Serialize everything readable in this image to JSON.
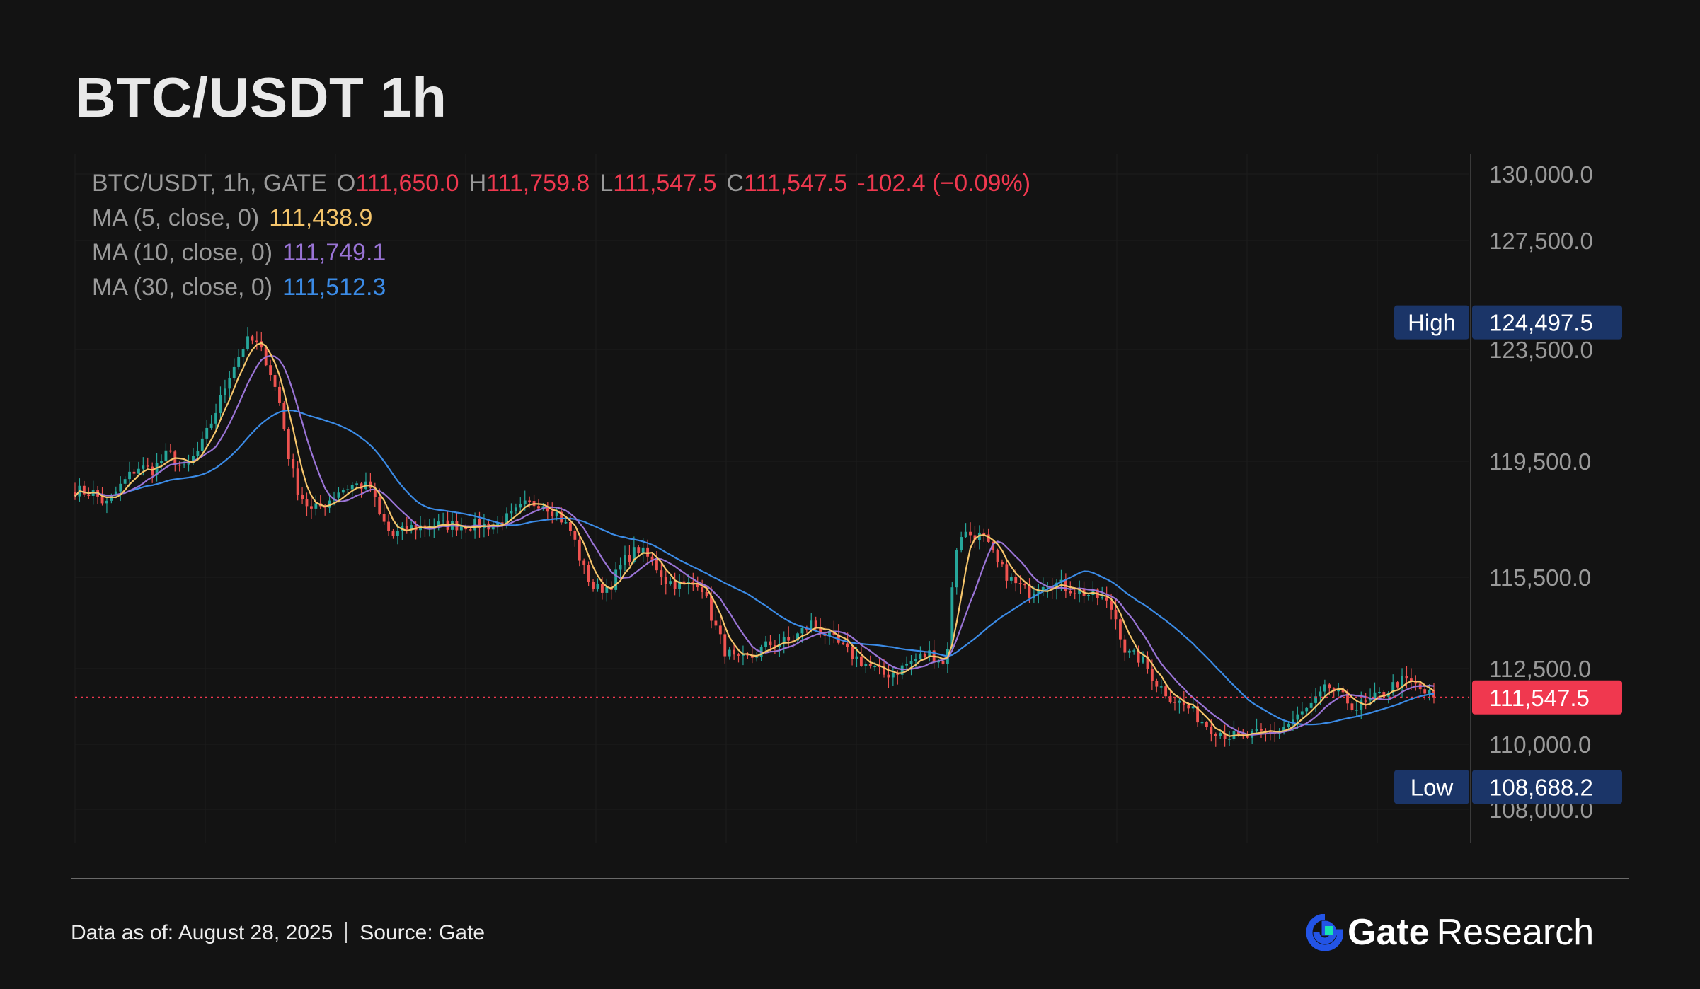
{
  "page": {
    "title": "BTC/USDT 1h"
  },
  "legend": {
    "symbol": "BTC/USDT, 1h, GATE",
    "o_label": "O",
    "o_value": "111,650.0",
    "h_label": "H",
    "h_value": "111,759.8",
    "l_label": "L",
    "l_value": "111,547.5",
    "c_label": "C",
    "c_value": "111,547.5",
    "change": "-102.4 (−0.09%)",
    "ma5_label": "MA (5, close, 0)",
    "ma5_value": "111,438.9",
    "ma10_label": "MA (10, close, 0)",
    "ma10_value": "111,749.1",
    "ma30_label": "MA (30, close, 0)",
    "ma30_value": "111,512.3"
  },
  "footer": {
    "data_as_of": "Data as of: August 28, 2025",
    "source": "Source: Gate"
  },
  "brand": {
    "name": "Gate",
    "suffix": "Research",
    "icon": "gate-logo-icon"
  },
  "colors": {
    "up": "#26a69a",
    "down": "#ef5350",
    "ma5": "#f5c56b",
    "ma10": "#9a74d6",
    "ma30": "#3b8be6",
    "price_tag": "#f0384f",
    "badge": "#1b3568"
  },
  "chart_data": {
    "type": "candlestick",
    "title": "BTC/USDT 1h",
    "interval": "1h",
    "exchange": "GATE",
    "ylim": [
      108000,
      130000
    ],
    "y_ticks": [
      "130,000.0",
      "127,500.0",
      "123,500.0",
      "119,500.0",
      "115,500.0",
      "112,500.0",
      "110,000.0",
      "108,000.0"
    ],
    "y_tick_values": [
      130000,
      127500,
      123500,
      119500,
      115500,
      112500,
      110000,
      108000
    ],
    "last_price": 111547.5,
    "last_price_label": "111,547.5",
    "high": {
      "label": "High",
      "value": 124497.5,
      "value_label": "124,497.5"
    },
    "low": {
      "label": "Low",
      "value": 108688.2,
      "value_label": "108,688.2"
    },
    "bars": 300,
    "approx_close_path": [
      [
        0,
        118500
      ],
      [
        6,
        118400
      ],
      [
        10,
        118000
      ],
      [
        15,
        118700
      ],
      [
        20,
        119300
      ],
      [
        25,
        119200
      ],
      [
        30,
        119800
      ],
      [
        35,
        119200
      ],
      [
        40,
        119900
      ],
      [
        45,
        121200
      ],
      [
        50,
        122700
      ],
      [
        55,
        123800
      ],
      [
        58,
        123800
      ],
      [
        62,
        123000
      ],
      [
        66,
        121500
      ],
      [
        69,
        119500
      ],
      [
        72,
        118400
      ],
      [
        76,
        117800
      ],
      [
        80,
        118000
      ],
      [
        85,
        118500
      ],
      [
        90,
        118700
      ],
      [
        95,
        118600
      ],
      [
        98,
        117600
      ],
      [
        102,
        116900
      ],
      [
        107,
        117200
      ],
      [
        115,
        117300
      ],
      [
        125,
        117300
      ],
      [
        135,
        117300
      ],
      [
        140,
        117600
      ],
      [
        145,
        118000
      ],
      [
        150,
        118100
      ],
      [
        155,
        117700
      ],
      [
        160,
        117000
      ],
      [
        163,
        115900
      ],
      [
        167,
        115100
      ],
      [
        172,
        115200
      ],
      [
        176,
        116000
      ],
      [
        181,
        116500
      ],
      [
        186,
        116000
      ],
      [
        190,
        115400
      ],
      [
        196,
        115200
      ],
      [
        201,
        115400
      ],
      [
        205,
        114100
      ],
      [
        209,
        113100
      ],
      [
        213,
        112700
      ],
      [
        218,
        112900
      ],
      [
        223,
        113300
      ],
      [
        230,
        113400
      ],
      [
        237,
        114000
      ],
      [
        243,
        113500
      ],
      [
        249,
        113000
      ],
      [
        255,
        112600
      ],
      [
        260,
        112300
      ],
      [
        264,
        112400
      ],
      [
        270,
        112800
      ],
      [
        275,
        113000
      ],
      [
        278,
        112800
      ],
      [
        280,
        112500
      ],
      [
        282,
        115000
      ],
      [
        284,
        117000
      ],
      [
        287,
        117000
      ],
      [
        292,
        116900
      ],
      [
        297,
        115900
      ],
      [
        302,
        115300
      ],
      [
        307,
        115000
      ],
      [
        312,
        115400
      ],
      [
        318,
        115200
      ],
      [
        324,
        115000
      ],
      [
        330,
        114800
      ],
      [
        334,
        114400
      ],
      [
        338,
        113000
      ],
      [
        343,
        112800
      ],
      [
        348,
        112000
      ],
      [
        353,
        111500
      ],
      [
        358,
        111200
      ],
      [
        362,
        110800
      ],
      [
        366,
        110500
      ],
      [
        371,
        110300
      ],
      [
        375,
        110200
      ],
      [
        380,
        110300
      ],
      [
        386,
        110400
      ],
      [
        392,
        110800
      ],
      [
        398,
        111300
      ],
      [
        403,
        111900
      ],
      [
        408,
        111500
      ],
      [
        412,
        111200
      ],
      [
        416,
        111400
      ],
      [
        421,
        111700
      ],
      [
        426,
        112100
      ],
      [
        430,
        112000
      ],
      [
        434,
        111700
      ],
      [
        437,
        111547.5
      ]
    ]
  }
}
